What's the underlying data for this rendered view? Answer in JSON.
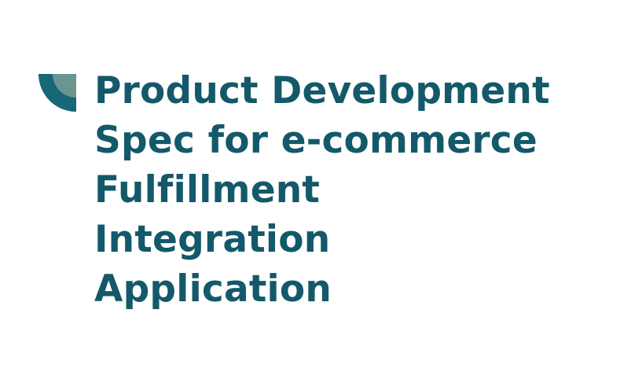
{
  "colors": {
    "title": "#13596a",
    "logo_primary": "#176777",
    "logo_secondary": "#6b9690",
    "background": "#ffffff"
  },
  "logo": {
    "icon": "quarter-circle-logo-icon"
  },
  "title": {
    "lines": [
      "Product Development",
      "Spec for e-commerce",
      "Fulfillment",
      "Integration",
      "Application"
    ]
  }
}
